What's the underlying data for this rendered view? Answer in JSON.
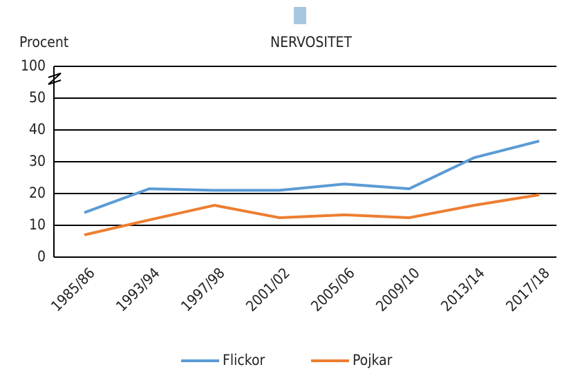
{
  "chart_data": {
    "type": "line",
    "title": "NERVOSITET",
    "ylabel": "Procent",
    "categories": [
      "1985/86",
      "1993/94",
      "1997/98",
      "2001/02",
      "2005/06",
      "2009/10",
      "2013/14",
      "2017/18"
    ],
    "series": [
      {
        "name": "Flickor",
        "color": "#5b9bd5",
        "values": [
          14,
          21.5,
          21,
          21,
          23,
          21.5,
          31.3,
          36.5
        ]
      },
      {
        "name": "Pojkar",
        "color": "#ed7d31",
        "values": [
          7,
          11.7,
          16.3,
          12.4,
          13.3,
          12.4,
          16.3,
          19.6
        ]
      }
    ],
    "ylim": [
      0,
      100
    ],
    "yticks": [
      0,
      10,
      20,
      30,
      40,
      50,
      100
    ],
    "axis_break": [
      50,
      100
    ],
    "grid": true
  }
}
